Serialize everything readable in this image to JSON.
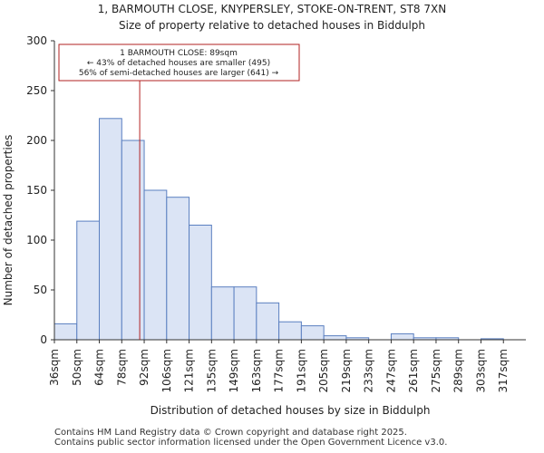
{
  "chart_data": {
    "type": "bar",
    "title": "1, BARMOUTH CLOSE, KNYPERSLEY, STOKE-ON-TRENT, ST8 7XN",
    "subtitle": "Size of property relative to detached houses in Biddulph",
    "xlabel": "Distribution of detached houses by size in Biddulph",
    "ylabel": "Number of detached properties",
    "ylim": [
      0,
      300
    ],
    "yticks": [
      0,
      50,
      100,
      150,
      200,
      250,
      300
    ],
    "categories": [
      "36sqm",
      "50sqm",
      "64sqm",
      "78sqm",
      "92sqm",
      "106sqm",
      "121sqm",
      "135sqm",
      "149sqm",
      "163sqm",
      "177sqm",
      "191sqm",
      "205sqm",
      "219sqm",
      "233sqm",
      "247sqm",
      "261sqm",
      "275sqm",
      "289sqm",
      "303sqm",
      "317sqm"
    ],
    "values": [
      16,
      119,
      222,
      200,
      150,
      143,
      115,
      53,
      53,
      37,
      18,
      14,
      4,
      2,
      0,
      6,
      2,
      2,
      0,
      1,
      0
    ],
    "bar_color": "#dbe4f5",
    "bar_edge_color": "#5a7fc0",
    "marker": {
      "value_sqm": 89,
      "bin_position": 3.8,
      "color": "#b22222"
    },
    "annotation": {
      "line1": "1 BARMOUTH CLOSE: 89sqm",
      "line2": "← 43% of detached houses are smaller (495)",
      "line3": "56% of semi-detached houses are larger (641) →"
    }
  },
  "footer": {
    "line1": "Contains HM Land Registry data © Crown copyright and database right 2025.",
    "line2": "Contains public sector information licensed under the Open Government Licence v3.0."
  }
}
